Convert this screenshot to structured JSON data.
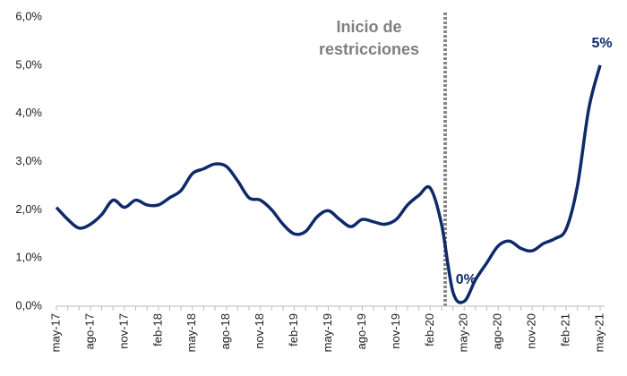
{
  "chart_data": {
    "type": "line",
    "categories": [
      "may-17",
      null,
      null,
      "ago-17",
      null,
      null,
      "nov-17",
      null,
      null,
      "feb-18",
      null,
      null,
      "may-18",
      null,
      null,
      "ago-18",
      null,
      null,
      "nov-18",
      null,
      null,
      "feb-19",
      null,
      null,
      "may-19",
      null,
      null,
      "ago-19",
      null,
      null,
      "nov-19",
      null,
      null,
      "feb-20",
      null,
      null,
      "may-20",
      null,
      null,
      "ago-20",
      null,
      null,
      "nov-20",
      null,
      null,
      "feb-21",
      null,
      null,
      "may-21"
    ],
    "series": [
      {
        "color": "#0f2a6b",
        "values": [
          2.05,
          1.8,
          1.62,
          1.7,
          1.9,
          2.2,
          2.05,
          2.2,
          2.1,
          2.1,
          2.25,
          2.4,
          2.75,
          2.85,
          2.95,
          2.9,
          2.6,
          2.25,
          2.2,
          2.0,
          1.7,
          1.5,
          1.55,
          1.85,
          1.98,
          1.8,
          1.65,
          1.8,
          1.75,
          1.7,
          1.8,
          2.1,
          2.3,
          2.45,
          1.7,
          0.3,
          0.1,
          0.55,
          0.9,
          1.25,
          1.35,
          1.2,
          1.15,
          1.3,
          1.4,
          1.6,
          2.5,
          4.1,
          5.0
        ],
        "value_labels": [
          null,
          null,
          null,
          null,
          null,
          null,
          null,
          null,
          null,
          null,
          null,
          null,
          null,
          null,
          null,
          null,
          null,
          null,
          null,
          null,
          null,
          null,
          null,
          null,
          null,
          null,
          null,
          null,
          null,
          null,
          null,
          null,
          null,
          null,
          null,
          null,
          "0%",
          null,
          null,
          null,
          null,
          null,
          null,
          null,
          null,
          null,
          null,
          null,
          "5%"
        ]
      }
    ],
    "ylim": [
      0,
      6
    ],
    "yticks": [
      {
        "value": 0,
        "label": "0,0%"
      },
      {
        "value": 1,
        "label": "1,0%"
      },
      {
        "value": 2,
        "label": "2,0%"
      },
      {
        "value": 3,
        "label": "3,0%"
      },
      {
        "value": 4,
        "label": "4,0%"
      },
      {
        "value": 5,
        "label": "5,0%"
      },
      {
        "value": 6,
        "label": "6,0%"
      }
    ],
    "annotation": [
      "Inicio de",
      "restricciones"
    ]
  }
}
